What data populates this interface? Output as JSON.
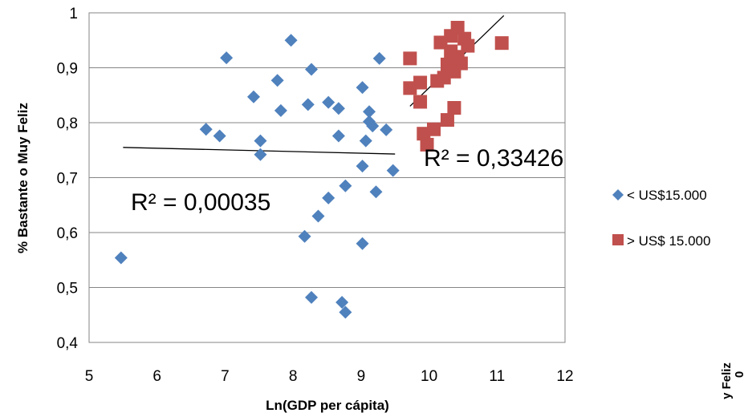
{
  "chart_data": {
    "type": "scatter",
    "title": "",
    "xlabel": "Ln(GDP per cápita)",
    "ylabel": "% Bastante o Muy Feliz",
    "xlim": [
      5,
      12
    ],
    "ylim": [
      0.4,
      1
    ],
    "x_ticks": [
      "5",
      "6",
      "7",
      "8",
      "9",
      "10",
      "11",
      "12"
    ],
    "y_ticks": [
      "0,4",
      "0,5",
      "0,6",
      "0,7",
      "0,8",
      "0,9",
      "1"
    ],
    "grid": "horizontal",
    "legend_position": "right",
    "series": [
      {
        "name": "< US$15.000",
        "color": "#4f81bd",
        "marker": "diamond",
        "points": [
          [
            5.47,
            0.554
          ],
          [
            6.72,
            0.788
          ],
          [
            6.92,
            0.776
          ],
          [
            7.02,
            0.918
          ],
          [
            7.42,
            0.847
          ],
          [
            7.52,
            0.767
          ],
          [
            7.52,
            0.742
          ],
          [
            7.77,
            0.877
          ],
          [
            7.82,
            0.822
          ],
          [
            7.97,
            0.95
          ],
          [
            8.17,
            0.593
          ],
          [
            8.22,
            0.833
          ],
          [
            8.27,
            0.897
          ],
          [
            8.27,
            0.482
          ],
          [
            8.37,
            0.63
          ],
          [
            8.52,
            0.837
          ],
          [
            8.52,
            0.663
          ],
          [
            8.67,
            0.826
          ],
          [
            8.67,
            0.776
          ],
          [
            8.72,
            0.473
          ],
          [
            8.77,
            0.685
          ],
          [
            8.77,
            0.455
          ],
          [
            9.02,
            0.864
          ],
          [
            9.02,
            0.721
          ],
          [
            9.02,
            0.58
          ],
          [
            9.07,
            0.767
          ],
          [
            9.12,
            0.82
          ],
          [
            9.12,
            0.802
          ],
          [
            9.17,
            0.794
          ],
          [
            9.22,
            0.674
          ],
          [
            9.27,
            0.917
          ],
          [
            9.37,
            0.787
          ],
          [
            9.47,
            0.713
          ]
        ]
      },
      {
        "name": "> US$ 15.000",
        "color": "#c0504d",
        "marker": "square",
        "points": [
          [
            9.72,
            0.917
          ],
          [
            9.72,
            0.863
          ],
          [
            9.87,
            0.873
          ],
          [
            9.87,
            0.838
          ],
          [
            9.92,
            0.78
          ],
          [
            9.97,
            0.76
          ],
          [
            10.07,
            0.788
          ],
          [
            10.12,
            0.876
          ],
          [
            10.17,
            0.946
          ],
          [
            10.22,
            0.882
          ],
          [
            10.27,
            0.906
          ],
          [
            10.27,
            0.805
          ],
          [
            10.32,
            0.958
          ],
          [
            10.32,
            0.93
          ],
          [
            10.37,
            0.893
          ],
          [
            10.37,
            0.827
          ],
          [
            10.42,
            0.973
          ],
          [
            10.42,
            0.92
          ],
          [
            10.47,
            0.908
          ],
          [
            10.52,
            0.953
          ],
          [
            10.57,
            0.94
          ],
          [
            11.07,
            0.945
          ]
        ]
      }
    ],
    "trendlines": [
      {
        "series": "< US$15.000",
        "x": [
          5.5,
          9.5
        ],
        "y": [
          0.755,
          0.743
        ],
        "label": "R² = 0,00035"
      },
      {
        "series": "> US$ 15.000",
        "x": [
          9.72,
          11.1
        ],
        "y": [
          0.83,
          0.995
        ],
        "label": "R² = 0,33426"
      }
    ]
  },
  "clipped_fragment": {
    "text": "y Feliz",
    "digit": "0"
  }
}
